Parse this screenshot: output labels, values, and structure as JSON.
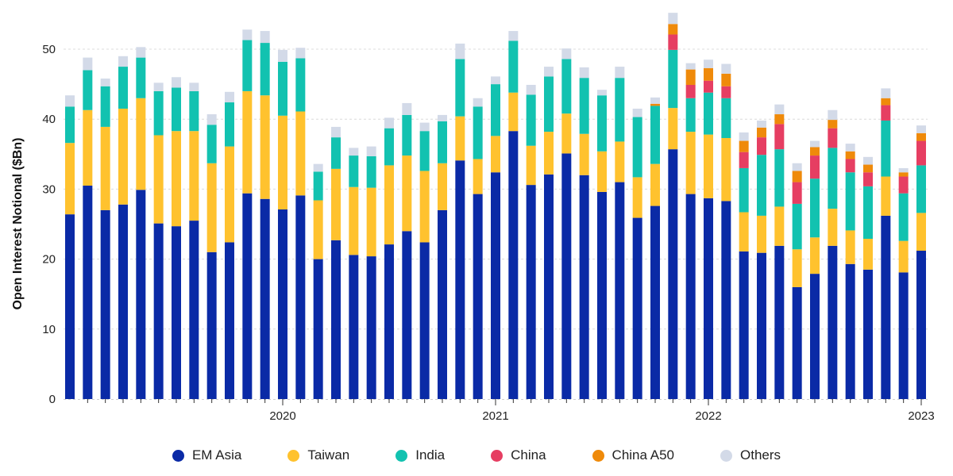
{
  "chart_data": {
    "type": "bar",
    "stacked": true,
    "title": "",
    "xlabel": "",
    "ylabel": "Open Interest Notional ($Bn)",
    "ylim": [
      0,
      55
    ],
    "yticks": [
      0,
      10,
      20,
      30,
      40,
      50
    ],
    "grid": true,
    "legend_position": "bottom",
    "x_tick_labels": [
      {
        "index": 12,
        "label": "2020"
      },
      {
        "index": 24,
        "label": "2021"
      },
      {
        "index": 36,
        "label": "2022"
      },
      {
        "index": 48,
        "label": "2023"
      }
    ],
    "categories": [
      "2019-01",
      "2019-02",
      "2019-03",
      "2019-04",
      "2019-05",
      "2019-06",
      "2019-07",
      "2019-08",
      "2019-09",
      "2019-10",
      "2019-11",
      "2019-12",
      "2020-01",
      "2020-02",
      "2020-03",
      "2020-04",
      "2020-05",
      "2020-06",
      "2020-07",
      "2020-08",
      "2020-09",
      "2020-10",
      "2020-11",
      "2020-12",
      "2021-01",
      "2021-02",
      "2021-03",
      "2021-04",
      "2021-05",
      "2021-06",
      "2021-07",
      "2021-08",
      "2021-09",
      "2021-10",
      "2021-11",
      "2021-12",
      "2022-01",
      "2022-02",
      "2022-03",
      "2022-04",
      "2022-05",
      "2022-06",
      "2022-07",
      "2022-08",
      "2022-09",
      "2022-10",
      "2022-11",
      "2022-12",
      "2023-01"
    ],
    "series": [
      {
        "name": "EM Asia",
        "color": "#0a2aa6",
        "values": [
          26.4,
          30.5,
          27.0,
          27.8,
          29.9,
          25.1,
          24.7,
          25.5,
          21.0,
          22.4,
          29.4,
          28.6,
          27.1,
          29.1,
          20.0,
          22.7,
          20.6,
          20.4,
          22.1,
          24.0,
          22.4,
          27.0,
          34.1,
          29.3,
          32.4,
          38.3,
          30.6,
          32.1,
          35.1,
          32.0,
          29.6,
          31.0,
          25.9,
          27.6,
          35.7,
          29.3,
          28.7,
          28.3,
          21.1,
          20.9,
          21.9,
          16.0,
          17.9,
          21.9,
          19.3,
          18.5,
          26.2,
          18.1,
          21.2
        ]
      },
      {
        "name": "Taiwan",
        "color": "#ffc22e",
        "values": [
          10.2,
          10.8,
          11.9,
          13.7,
          13.1,
          12.6,
          13.6,
          12.8,
          12.7,
          13.7,
          14.6,
          14.8,
          13.4,
          12.0,
          8.4,
          10.2,
          9.7,
          9.8,
          11.3,
          10.8,
          10.2,
          6.7,
          6.3,
          5.0,
          5.2,
          5.5,
          5.6,
          6.1,
          5.7,
          5.9,
          5.8,
          5.8,
          5.8,
          6.0,
          5.9,
          8.9,
          9.1,
          9.0,
          5.6,
          5.3,
          5.6,
          5.4,
          5.2,
          5.3,
          4.8,
          4.4,
          5.6,
          4.5,
          5.4
        ]
      },
      {
        "name": "India",
        "color": "#12c2b0",
        "values": [
          5.2,
          5.7,
          5.8,
          6.0,
          5.8,
          6.3,
          6.2,
          5.7,
          5.5,
          6.3,
          7.3,
          7.5,
          7.7,
          7.6,
          4.1,
          4.5,
          4.5,
          4.5,
          5.3,
          5.8,
          5.7,
          6.0,
          8.2,
          7.5,
          7.4,
          7.4,
          7.3,
          7.9,
          7.8,
          8.0,
          8.0,
          9.1,
          8.6,
          8.3,
          8.3,
          4.8,
          6.0,
          5.7,
          6.3,
          8.7,
          8.2,
          6.5,
          8.4,
          8.7,
          8.3,
          7.5,
          8.0,
          6.8,
          6.8
        ]
      },
      {
        "name": "China",
        "color": "#e63e62",
        "values": [
          0,
          0,
          0,
          0,
          0,
          0,
          0,
          0,
          0,
          0,
          0,
          0,
          0,
          0,
          0,
          0,
          0,
          0,
          0,
          0,
          0,
          0,
          0,
          0,
          0,
          0,
          0,
          0,
          0,
          0,
          0,
          0,
          0,
          0,
          2.2,
          1.9,
          1.7,
          1.7,
          2.3,
          2.5,
          3.6,
          3.1,
          3.3,
          2.8,
          1.9,
          2.0,
          2.2,
          2.4,
          3.5
        ]
      },
      {
        "name": "China A50",
        "color": "#ef8a0a",
        "values": [
          0,
          0,
          0,
          0,
          0,
          0,
          0,
          0,
          0,
          0,
          0,
          0,
          0,
          0,
          0,
          0,
          0,
          0,
          0,
          0,
          0,
          0,
          0,
          0,
          0,
          0,
          0,
          0,
          0,
          0,
          0,
          0,
          0,
          0.3,
          1.5,
          2.2,
          1.8,
          1.8,
          1.6,
          1.4,
          1.4,
          1.6,
          1.2,
          1.2,
          1.1,
          1.1,
          1.0,
          0.6,
          1.1
        ]
      },
      {
        "name": "Others",
        "color": "#d3dae8",
        "values": [
          1.6,
          1.8,
          1.1,
          1.5,
          1.5,
          1.2,
          1.5,
          1.2,
          1.5,
          1.5,
          1.5,
          1.7,
          1.7,
          1.5,
          1.1,
          1.5,
          1.1,
          1.4,
          1.5,
          1.7,
          1.2,
          0.9,
          2.2,
          1.2,
          1.1,
          1.4,
          1.4,
          1.4,
          1.5,
          1.5,
          0.8,
          1.6,
          1.2,
          0.9,
          1.6,
          0.9,
          1.2,
          1.4,
          1.2,
          1.0,
          1.4,
          1.1,
          0.9,
          1.4,
          1.1,
          1.1,
          1.4,
          0.6,
          1.1
        ]
      }
    ]
  },
  "legend": {
    "items": [
      {
        "label": "EM Asia",
        "color": "#0a2aa6"
      },
      {
        "label": "Taiwan",
        "color": "#ffc22e"
      },
      {
        "label": "India",
        "color": "#12c2b0"
      },
      {
        "label": "China",
        "color": "#e63e62"
      },
      {
        "label": "China A50",
        "color": "#ef8a0a"
      },
      {
        "label": "Others",
        "color": "#d3dae8"
      }
    ]
  }
}
